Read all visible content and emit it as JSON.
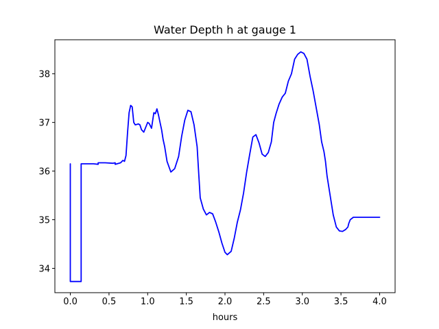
{
  "chart_data": {
    "type": "line",
    "title": "Water Depth h at gauge 1",
    "xlabel": "hours",
    "ylabel": "",
    "xlim": [
      -0.2,
      4.2
    ],
    "ylim": [
      33.5,
      38.7
    ],
    "xticks": [
      0.0,
      0.5,
      1.0,
      1.5,
      2.0,
      2.5,
      3.0,
      3.5,
      4.0
    ],
    "xtick_labels": [
      "0.0",
      "0.5",
      "1.0",
      "1.5",
      "2.0",
      "2.5",
      "3.0",
      "3.5",
      "4.0"
    ],
    "yticks": [
      34,
      35,
      36,
      37,
      38
    ],
    "ytick_labels": [
      "34",
      "35",
      "36",
      "37",
      "38"
    ],
    "grid": false,
    "series": [
      {
        "color": "#0000ff",
        "x": [
          0.0,
          0.0,
          0.0,
          0.14,
          0.14,
          0.2,
          0.3,
          0.36,
          0.36,
          0.45,
          0.55,
          0.58,
          0.58,
          0.65,
          0.68,
          0.7,
          0.72,
          0.74,
          0.76,
          0.78,
          0.8,
          0.82,
          0.84,
          0.86,
          0.88,
          0.9,
          0.92,
          0.95,
          1.0,
          1.02,
          1.05,
          1.08,
          1.1,
          1.12,
          1.14,
          1.16,
          1.18,
          1.2,
          1.22,
          1.25,
          1.3,
          1.35,
          1.4,
          1.44,
          1.48,
          1.52,
          1.56,
          1.6,
          1.64,
          1.66,
          1.68,
          1.72,
          1.76,
          1.8,
          1.84,
          1.88,
          1.92,
          1.96,
          2.0,
          2.03,
          2.08,
          2.12,
          2.16,
          2.2,
          2.24,
          2.28,
          2.32,
          2.36,
          2.4,
          2.44,
          2.48,
          2.52,
          2.56,
          2.6,
          2.63,
          2.66,
          2.7,
          2.74,
          2.78,
          2.82,
          2.86,
          2.9,
          2.94,
          2.98,
          3.02,
          3.06,
          3.1,
          3.14,
          3.18,
          3.22,
          3.25,
          3.28,
          3.3,
          3.32,
          3.36,
          3.4,
          3.44,
          3.48,
          3.52,
          3.56,
          3.59,
          3.6,
          3.62,
          3.66,
          3.7,
          3.74,
          3.78,
          3.82,
          3.86,
          3.9,
          3.94,
          3.97,
          4.0
        ],
        "y": [
          36.15,
          33.73,
          33.73,
          33.73,
          36.15,
          36.15,
          36.15,
          36.14,
          36.17,
          36.17,
          36.16,
          36.17,
          36.14,
          36.17,
          36.22,
          36.2,
          36.32,
          36.8,
          37.2,
          37.35,
          37.32,
          37.0,
          36.95,
          36.96,
          36.97,
          36.95,
          36.85,
          36.8,
          37.0,
          36.98,
          36.88,
          37.2,
          37.18,
          37.28,
          37.15,
          37.0,
          36.85,
          36.65,
          36.5,
          36.2,
          35.98,
          36.05,
          36.3,
          36.72,
          37.05,
          37.25,
          37.22,
          36.95,
          36.5,
          35.95,
          35.45,
          35.22,
          35.1,
          35.15,
          35.12,
          34.95,
          34.75,
          34.52,
          34.33,
          34.28,
          34.35,
          34.62,
          34.95,
          35.2,
          35.55,
          35.98,
          36.35,
          36.7,
          36.75,
          36.58,
          36.35,
          36.3,
          36.38,
          36.6,
          37.0,
          37.18,
          37.38,
          37.52,
          37.6,
          37.85,
          38.0,
          38.3,
          38.4,
          38.45,
          38.42,
          38.3,
          37.95,
          37.65,
          37.3,
          36.95,
          36.6,
          36.4,
          36.2,
          35.9,
          35.5,
          35.1,
          34.85,
          34.77,
          34.76,
          34.8,
          34.85,
          34.92,
          35.0,
          35.05,
          35.05,
          35.05,
          35.05,
          35.05,
          35.05,
          35.05,
          35.05,
          35.05,
          35.05
        ]
      }
    ]
  }
}
